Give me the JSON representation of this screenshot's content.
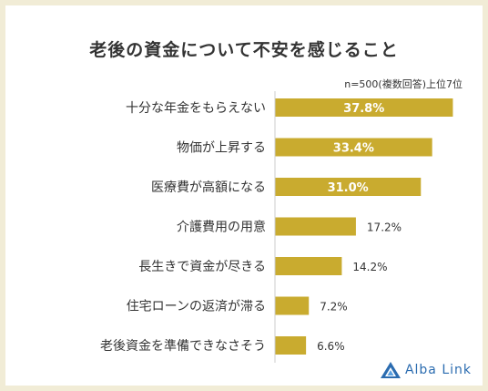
{
  "chart_data": {
    "type": "bar",
    "orientation": "horizontal",
    "title": "老後の資金について不安を感じること",
    "subtitle": "n=500(複数回答)上位7位",
    "categories": [
      "十分な年金をもらえない",
      "物価が上昇する",
      "医療費が高額になる",
      "介護費用の用意",
      "長生きで資金が尽きる",
      "住宅ローンの返済が滞る",
      "老後資金を準備できなさそう"
    ],
    "values": [
      37.8,
      33.4,
      31.0,
      17.2,
      14.2,
      7.2,
      6.6
    ],
    "value_labels": [
      "37.8%",
      "33.4%",
      "31.0%",
      "17.2%",
      "14.2%",
      "7.2%",
      "6.6%"
    ],
    "xlim": [
      0,
      40
    ],
    "grid": false,
    "colors": {
      "bar": "#c9ab2f",
      "inside_label": "#ffffff",
      "outside_label": "#333333"
    }
  },
  "brand": {
    "name": "Alba Link",
    "icon": "alba-link-logo-icon",
    "color": "#2b6cb0"
  }
}
